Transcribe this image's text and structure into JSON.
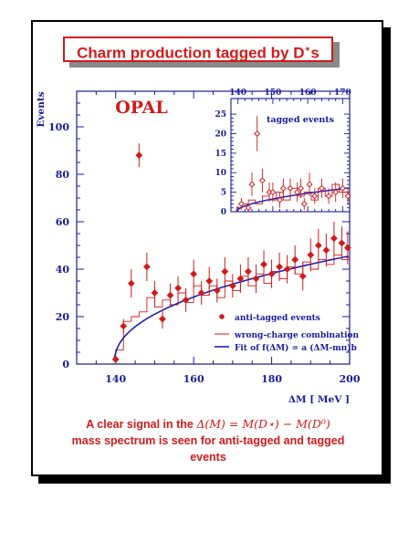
{
  "slide": {
    "title_prefix": "Charm production tagged by D",
    "title_sup": "⋆",
    "title_suffix": "s",
    "caption_line1_prefix": "A clear signal in the ",
    "caption_math": "Δ(M) = M(D⋆) − M(D⁰)",
    "caption_line2": "mass spectrum is seen for anti-tagged and tagged",
    "caption_line3": "events"
  },
  "colors": {
    "accent": "#d21a1a",
    "axis": "#1a1a9c",
    "fit": "#1e1eb4",
    "frame": "#000000"
  },
  "chart_data": [
    {
      "type": "scatter",
      "experiment_label": "OPAL",
      "xlabel": "ΔM [ MeV ]",
      "ylabel": "Events",
      "xlim": [
        130,
        200
      ],
      "ylim": [
        0,
        115
      ],
      "xticks": [
        140,
        160,
        180,
        200
      ],
      "yticks": [
        0,
        20,
        40,
        60,
        80,
        100
      ],
      "legend": {
        "placement": "bottom-right",
        "entries": [
          "anti-tagged events",
          "wrong-charge combination",
          "Fit of f(ΔM) = a (ΔM-mπ)b"
        ]
      },
      "series": [
        {
          "name": "anti-tagged events",
          "points": [
            {
              "x": 140,
              "y": 2,
              "err": 1.5
            },
            {
              "x": 142,
              "y": 16,
              "err": 3
            },
            {
              "x": 144,
              "y": 34,
              "err": 6
            },
            {
              "x": 146,
              "y": 88,
              "err": 5
            },
            {
              "x": 148,
              "y": 41,
              "err": 6
            },
            {
              "x": 150,
              "y": 30,
              "err": 5
            },
            {
              "x": 152,
              "y": 19,
              "err": 4
            },
            {
              "x": 154,
              "y": 29,
              "err": 5
            },
            {
              "x": 156,
              "y": 32,
              "err": 5
            },
            {
              "x": 158,
              "y": 27,
              "err": 5
            },
            {
              "x": 160,
              "y": 38,
              "err": 6
            },
            {
              "x": 162,
              "y": 30,
              "err": 5
            },
            {
              "x": 164,
              "y": 35,
              "err": 6
            },
            {
              "x": 166,
              "y": 31,
              "err": 5
            },
            {
              "x": 168,
              "y": 39,
              "err": 6
            },
            {
              "x": 170,
              "y": 33,
              "err": 5
            },
            {
              "x": 172,
              "y": 36,
              "err": 6
            },
            {
              "x": 174,
              "y": 39,
              "err": 6
            },
            {
              "x": 176,
              "y": 36,
              "err": 6
            },
            {
              "x": 178,
              "y": 42,
              "err": 6
            },
            {
              "x": 180,
              "y": 38,
              "err": 6
            },
            {
              "x": 182,
              "y": 41,
              "err": 6
            },
            {
              "x": 184,
              "y": 40,
              "err": 6
            },
            {
              "x": 186,
              "y": 44,
              "err": 6
            },
            {
              "x": 188,
              "y": 37,
              "err": 6
            },
            {
              "x": 190,
              "y": 46,
              "err": 7
            },
            {
              "x": 192,
              "y": 50,
              "err": 7
            },
            {
              "x": 194,
              "y": 48,
              "err": 7
            },
            {
              "x": 196,
              "y": 53,
              "err": 7
            },
            {
              "x": 198,
              "y": 51,
              "err": 7
            },
            {
              "x": 199.5,
              "y": 49,
              "err": 7
            }
          ]
        },
        {
          "name": "wrong-charge combination",
          "steps": [
            {
              "x0": 140,
              "x1": 142,
              "y": 6
            },
            {
              "x0": 142,
              "x1": 144,
              "y": 18
            },
            {
              "x0": 144,
              "x1": 146,
              "y": 20
            },
            {
              "x0": 146,
              "x1": 148,
              "y": 22
            },
            {
              "x0": 148,
              "x1": 150,
              "y": 28
            },
            {
              "x0": 150,
              "x1": 152,
              "y": 24
            },
            {
              "x0": 152,
              "x1": 154,
              "y": 27
            },
            {
              "x0": 154,
              "x1": 156,
              "y": 25
            },
            {
              "x0": 156,
              "x1": 158,
              "y": 30
            },
            {
              "x0": 158,
              "x1": 160,
              "y": 26
            },
            {
              "x0": 160,
              "x1": 162,
              "y": 33
            },
            {
              "x0": 162,
              "x1": 164,
              "y": 29
            },
            {
              "x0": 164,
              "x1": 166,
              "y": 33
            },
            {
              "x0": 166,
              "x1": 168,
              "y": 28
            },
            {
              "x0": 168,
              "x1": 170,
              "y": 35
            },
            {
              "x0": 170,
              "x1": 172,
              "y": 31
            },
            {
              "x0": 172,
              "x1": 174,
              "y": 37
            },
            {
              "x0": 174,
              "x1": 176,
              "y": 33
            },
            {
              "x0": 176,
              "x1": 178,
              "y": 38
            },
            {
              "x0": 178,
              "x1": 180,
              "y": 34
            },
            {
              "x0": 180,
              "x1": 182,
              "y": 39
            },
            {
              "x0": 182,
              "x1": 184,
              "y": 36
            },
            {
              "x0": 184,
              "x1": 186,
              "y": 41
            },
            {
              "x0": 186,
              "x1": 188,
              "y": 38
            },
            {
              "x0": 188,
              "x1": 190,
              "y": 43
            },
            {
              "x0": 190,
              "x1": 192,
              "y": 40
            },
            {
              "x0": 192,
              "x1": 194,
              "y": 44
            },
            {
              "x0": 194,
              "x1": 196,
              "y": 42
            },
            {
              "x0": 196,
              "x1": 198,
              "y": 46
            },
            {
              "x0": 198,
              "x1": 200,
              "y": 44
            }
          ]
        },
        {
          "name": "Fit of f(ΔM) = a (ΔM-mπ)b",
          "function": {
            "a": 7.5,
            "m_pi": 139.6,
            "b": 0.44,
            "xmin": 139.7,
            "xmax": 200
          }
        }
      ]
    },
    {
      "type": "scatter",
      "panel_label": "tagged events",
      "xlim": [
        138,
        172
      ],
      "ylim": [
        0,
        29
      ],
      "xticks": [
        140,
        150,
        160,
        170
      ],
      "yticks": [
        0,
        5,
        10,
        15,
        20,
        25
      ],
      "series": [
        {
          "name": "tagged events",
          "points": [
            {
              "x": 141,
              "y": 2,
              "err": 1.5
            },
            {
              "x": 143,
              "y": 1,
              "err": 1.2
            },
            {
              "x": 144,
              "y": 7,
              "err": 3
            },
            {
              "x": 145.5,
              "y": 20,
              "err": 4.5
            },
            {
              "x": 147,
              "y": 8,
              "err": 3
            },
            {
              "x": 149,
              "y": 5,
              "err": 2.5
            },
            {
              "x": 150,
              "y": 5,
              "err": 2.5
            },
            {
              "x": 152,
              "y": 3,
              "err": 2
            },
            {
              "x": 153,
              "y": 6,
              "err": 2.5
            },
            {
              "x": 155,
              "y": 6,
              "err": 2.5
            },
            {
              "x": 157,
              "y": 5,
              "err": 2.5
            },
            {
              "x": 158,
              "y": 6,
              "err": 2.5
            },
            {
              "x": 159,
              "y": 2,
              "err": 1.5
            },
            {
              "x": 160.5,
              "y": 7,
              "err": 3
            },
            {
              "x": 162,
              "y": 4,
              "err": 2
            },
            {
              "x": 164,
              "y": 6,
              "err": 2.5
            },
            {
              "x": 166,
              "y": 4,
              "err": 2
            },
            {
              "x": 168,
              "y": 5,
              "err": 2.5
            },
            {
              "x": 170,
              "y": 6,
              "err": 2.5
            },
            {
              "x": 171.5,
              "y": 4,
              "err": 2
            }
          ]
        },
        {
          "name": "wrong-charge combination",
          "steps": [
            {
              "x0": 139.6,
              "x1": 141,
              "y": 1
            },
            {
              "x0": 141,
              "x1": 143,
              "y": 2
            },
            {
              "x0": 143,
              "x1": 145,
              "y": 3
            },
            {
              "x0": 145,
              "x1": 147,
              "y": 2
            },
            {
              "x0": 147,
              "x1": 149,
              "y": 4
            },
            {
              "x0": 149,
              "x1": 151,
              "y": 3
            },
            {
              "x0": 151,
              "x1": 153,
              "y": 5
            },
            {
              "x0": 153,
              "x1": 155,
              "y": 3
            },
            {
              "x0": 155,
              "x1": 157,
              "y": 6
            },
            {
              "x0": 157,
              "x1": 159,
              "y": 4
            },
            {
              "x0": 159,
              "x1": 161,
              "y": 5
            },
            {
              "x0": 161,
              "x1": 163,
              "y": 3
            },
            {
              "x0": 163,
              "x1": 165,
              "y": 6
            },
            {
              "x0": 165,
              "x1": 167,
              "y": 4
            },
            {
              "x0": 167,
              "x1": 169,
              "y": 7
            },
            {
              "x0": 169,
              "x1": 172,
              "y": 5
            }
          ]
        },
        {
          "name": "fit",
          "function": {
            "a": 0.9,
            "m_pi": 139.6,
            "b": 0.55,
            "xmin": 139.7,
            "xmax": 172
          }
        }
      ]
    }
  ]
}
